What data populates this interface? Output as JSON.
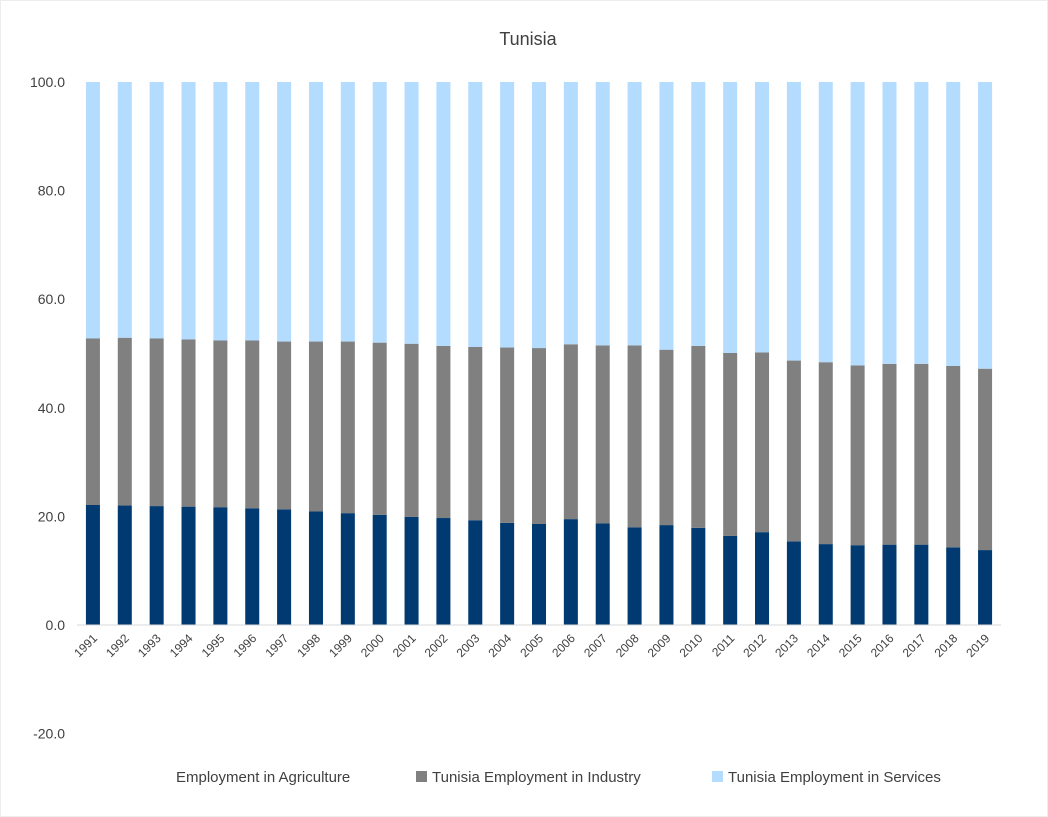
{
  "chart_data": {
    "type": "bar",
    "stacked": true,
    "title": "Tunisia",
    "xlabel": "",
    "ylabel": "",
    "ylim": [
      -20,
      100
    ],
    "yticks": [
      "100.0",
      "80.0",
      "60.0",
      "40.0",
      "20.0",
      "0.0",
      "-20.0"
    ],
    "ytick_values": [
      100,
      80,
      60,
      40,
      20,
      0,
      -20
    ],
    "grid": false,
    "legend_position": "bottom",
    "categories": [
      "1991",
      "1992",
      "1993",
      "1994",
      "1995",
      "1996",
      "1997",
      "1998",
      "1999",
      "2000",
      "2001",
      "2002",
      "2003",
      "2004",
      "2005",
      "2006",
      "2007",
      "2008",
      "2009",
      "2010",
      "2011",
      "2012",
      "2013",
      "2014",
      "2015",
      "2016",
      "2017",
      "2018",
      "2019"
    ],
    "series": [
      {
        "name": "Tunisia Employment in Agriculture",
        "legend_label": "Employment in Agriculture",
        "color": "#003a70",
        "values": [
          22.1,
          22.0,
          21.9,
          21.8,
          21.7,
          21.5,
          21.3,
          20.9,
          20.6,
          20.3,
          19.9,
          19.7,
          19.3,
          18.8,
          18.6,
          19.5,
          18.7,
          18.0,
          18.4,
          17.9,
          16.4,
          17.1,
          15.4,
          14.9,
          14.7,
          14.8,
          14.8,
          14.3,
          13.8
        ]
      },
      {
        "name": "Tunisia Employment in Industry",
        "legend_label": "Tunisia Employment in Industry",
        "color": "#808080",
        "values": [
          30.7,
          30.9,
          30.9,
          30.8,
          30.7,
          30.9,
          30.9,
          31.3,
          31.6,
          31.7,
          31.9,
          31.7,
          31.9,
          32.3,
          32.4,
          32.2,
          32.8,
          33.5,
          32.3,
          33.5,
          33.7,
          33.1,
          33.3,
          33.5,
          33.1,
          33.3,
          33.3,
          33.4,
          33.4
        ]
      },
      {
        "name": "Tunisia Employment in Services",
        "legend_label": "Tunisia Employment in Services",
        "color": "#b4dcff",
        "values": [
          47.2,
          47.1,
          47.2,
          47.4,
          47.6,
          47.6,
          47.8,
          47.8,
          47.8,
          48.0,
          48.2,
          48.6,
          48.8,
          48.9,
          49.0,
          48.3,
          48.5,
          48.5,
          49.3,
          48.6,
          49.9,
          49.8,
          51.3,
          51.6,
          52.2,
          51.9,
          51.9,
          52.3,
          52.8
        ]
      }
    ]
  }
}
